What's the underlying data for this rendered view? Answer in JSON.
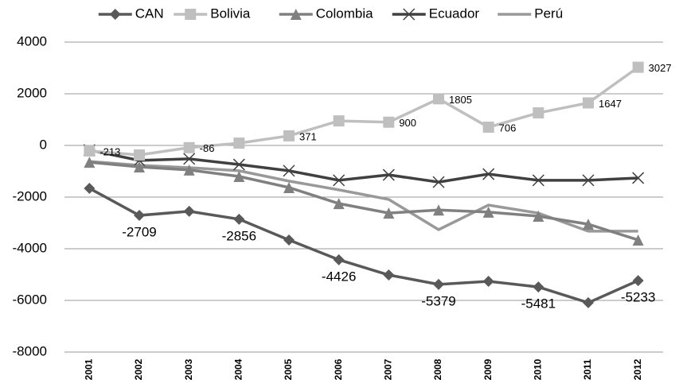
{
  "chart_data": {
    "type": "line",
    "categories": [
      "2001",
      "2002",
      "2003",
      "2004",
      "2005",
      "2006",
      "2007",
      "2008",
      "2009",
      "2010",
      "2011",
      "2012"
    ],
    "series": [
      {
        "name": "CAN",
        "color": "#595959",
        "marker": "diamond",
        "values": [
          -1660,
          -2709,
          -2550,
          -2856,
          -3660,
          -4426,
          -5015,
          -5379,
          -5260,
          -5481,
          -6090,
          -5233
        ],
        "value_labels": [
          null,
          "-2709",
          null,
          "-2856",
          null,
          "-4426",
          null,
          "-5379",
          null,
          "-5481",
          null,
          "-5233"
        ]
      },
      {
        "name": "Bolivia",
        "color": "#bfbfbf",
        "marker": "square",
        "values": [
          -213,
          -370,
          -86,
          90,
          371,
          950,
          900,
          1805,
          706,
          1260,
          1647,
          3027
        ],
        "value_labels": [
          "-213",
          null,
          "-86",
          null,
          "371",
          null,
          "900",
          "1805",
          "706",
          null,
          "1647",
          "3027"
        ]
      },
      {
        "name": "Colombia",
        "color": "#808080",
        "marker": "triangle",
        "values": [
          -650,
          -830,
          -950,
          -1200,
          -1630,
          -2250,
          -2620,
          -2500,
          -2580,
          -2740,
          -3050,
          -3660
        ]
      },
      {
        "name": "Ecuador",
        "color": "#404040",
        "marker": "x",
        "values": [
          -180,
          -580,
          -520,
          -740,
          -980,
          -1350,
          -1140,
          -1420,
          -1110,
          -1350,
          -1350,
          -1260
        ]
      },
      {
        "name": "Perú",
        "color": "#999999",
        "marker": "none",
        "values": [
          -620,
          -770,
          -860,
          -980,
          -1380,
          -1720,
          -2090,
          -3260,
          -2310,
          -2620,
          -3320,
          -3320
        ]
      }
    ],
    "ylim": [
      -8000,
      4000
    ],
    "yticks": [
      -8000,
      -6000,
      -4000,
      -2000,
      0,
      2000,
      4000
    ],
    "grid": true,
    "legend": "top"
  }
}
